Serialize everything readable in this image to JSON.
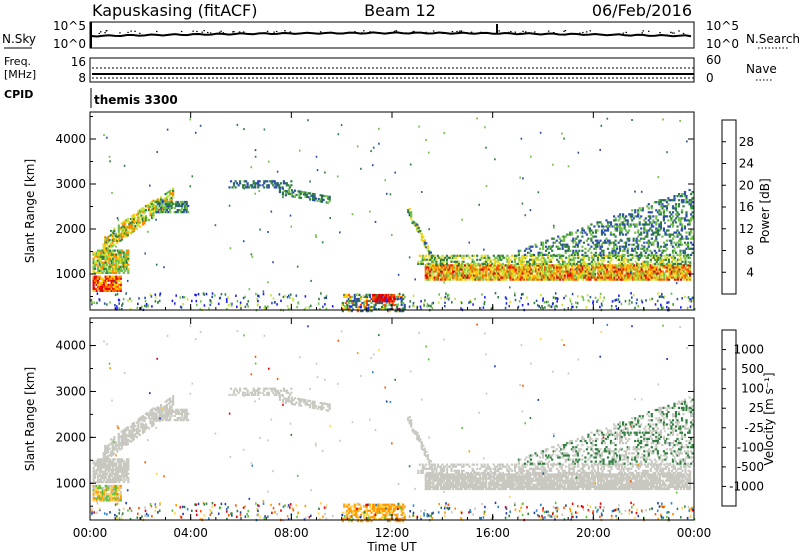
{
  "header": {
    "station": "Kapuskasing (fitACF)",
    "beam": "Beam 12",
    "date": "06/Feb/2016"
  },
  "top_panel": {
    "left_label": "N.Sky",
    "right_label": "N.Search",
    "left_ticks": [
      "10^5",
      "10^0"
    ],
    "right_ticks": [
      "10^5",
      "10^0"
    ]
  },
  "freq_panel": {
    "left_label_line1": "Freq.",
    "left_label_line2": "[MHz]",
    "left_ticks": [
      "16",
      "8"
    ],
    "right_ticks": [
      "60",
      "0"
    ],
    "right_label": "Nave",
    "cpid_label": "CPID",
    "cpid_value": "themis 3300"
  },
  "chart_data": [
    {
      "type": "heatmap",
      "name_of_panel": "power",
      "ylabel": "Slant Range [km]",
      "y_ticks": [
        "1000",
        "2000",
        "3000",
        "4000"
      ],
      "ylim": [
        200,
        4600
      ],
      "x_ticks": [
        "00:00",
        "04:00",
        "08:00",
        "12:00",
        "16:00",
        "20:00",
        "00:00"
      ],
      "xlim_hours": [
        0,
        24
      ],
      "colorbar": {
        "label": "Power [dB]",
        "ticks": [
          "4",
          "8",
          "12",
          "16",
          "20",
          "24",
          "28"
        ],
        "colors": [
          "#1a1aff",
          "#2c4fa8",
          "#2f7f3f",
          "#6fbf4a",
          "#c8e03a",
          "#ffcc00",
          "#ff8800",
          "#ff4d00",
          "#e60000"
        ]
      }
    },
    {
      "type": "heatmap",
      "name_of_panel": "velocity",
      "ylabel": "Slant Range [km]",
      "y_ticks": [
        "1000",
        "2000",
        "3000",
        "4000"
      ],
      "ylim": [
        200,
        4600
      ],
      "x_ticks": [
        "00:00",
        "04:00",
        "08:00",
        "12:00",
        "16:00",
        "20:00",
        "00:00"
      ],
      "xlabel": "Time UT",
      "xlim_hours": [
        0,
        24
      ],
      "colorbar": {
        "label": "Velocity [m s⁻¹]",
        "ticks": [
          "1000",
          "500",
          "100",
          "25",
          "-25",
          "-100",
          "-500",
          "-1000"
        ],
        "colors": [
          "#1e3ea8",
          "#2a7fd0",
          "#2f7f3f",
          "#5cc23a",
          "#c8c8c0",
          "#ffd24d",
          "#ff9900",
          "#ff5500",
          "#e60000"
        ]
      }
    }
  ],
  "colors": {
    "ground_scatter": "#c8c8c0",
    "frame": "#000000"
  }
}
